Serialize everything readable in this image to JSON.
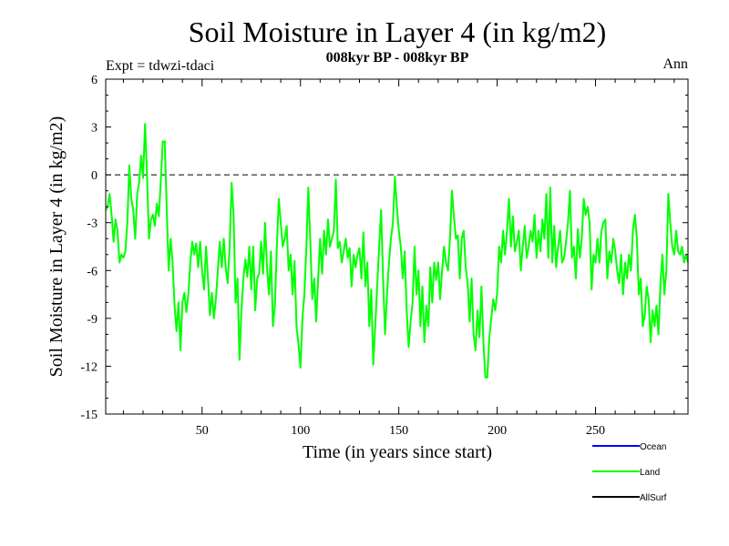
{
  "chart_data": {
    "type": "line",
    "title": "Soil Moisture in Layer 4 (in kg/m2)",
    "subtitle": "008kyr BP - 008kyr BP",
    "left_note": "Expt = tdwzi-tdaci",
    "right_note": "Ann",
    "xlabel": "Time (in years since start)",
    "ylabel": "Soil Moisture in Layer 4 (in kg/m2)",
    "xlim": [
      1,
      297
    ],
    "ylim": [
      -15,
      6
    ],
    "x_ticks": [
      50,
      100,
      150,
      200,
      250
    ],
    "y_ticks": [
      6,
      3,
      0,
      -3,
      -6,
      -9,
      -12,
      -15
    ],
    "zero_line": true,
    "legend": [
      "Ocean",
      "Land",
      "AllSurf"
    ],
    "legend_placement": "bottom-right",
    "series": [
      {
        "name": "Land",
        "color": "#00ff00",
        "keypoints": [
          [
            1,
            -2.2
          ],
          [
            2,
            -2.0
          ],
          [
            3,
            -1.2
          ],
          [
            4,
            -2.5
          ],
          [
            5,
            -4.2
          ],
          [
            6,
            -2.8
          ],
          [
            7,
            -3.5
          ],
          [
            8,
            -5.5
          ],
          [
            9,
            -5.0
          ],
          [
            10,
            -5.2
          ],
          [
            11,
            -4.8
          ],
          [
            12,
            -3.0
          ],
          [
            13,
            0.6
          ],
          [
            14,
            -1.5
          ],
          [
            15,
            -2.2
          ],
          [
            16,
            -4.0
          ],
          [
            17,
            -1.2
          ],
          [
            18,
            -0.5
          ],
          [
            19,
            1.2
          ],
          [
            20,
            -0.2
          ],
          [
            21,
            3.2
          ],
          [
            22,
            0.0
          ],
          [
            23,
            -4.0
          ],
          [
            24,
            -2.8
          ],
          [
            25,
            -2.5
          ],
          [
            26,
            -3.2
          ],
          [
            27,
            -1.8
          ],
          [
            28,
            -2.6
          ],
          [
            29,
            -0.4
          ],
          [
            30,
            2.1
          ],
          [
            31,
            2.1
          ],
          [
            32,
            -2.0
          ],
          [
            33,
            -6.0
          ],
          [
            34,
            -4.0
          ],
          [
            35,
            -5.5
          ],
          [
            36,
            -8.2
          ],
          [
            37,
            -9.8
          ],
          [
            38,
            -8.0
          ],
          [
            39,
            -11.0
          ],
          [
            40,
            -8.0
          ],
          [
            41,
            -7.4
          ],
          [
            42,
            -8.6
          ],
          [
            43,
            -7.5
          ],
          [
            44,
            -5.5
          ],
          [
            45,
            -4.2
          ],
          [
            46,
            -5.0
          ],
          [
            47,
            -4.3
          ],
          [
            48,
            -5.8
          ],
          [
            49,
            -4.2
          ],
          [
            50,
            -6.0
          ],
          [
            51,
            -7.2
          ],
          [
            52,
            -4.5
          ],
          [
            53,
            -6.5
          ],
          [
            54,
            -8.8
          ],
          [
            55,
            -7.4
          ],
          [
            56,
            -9.0
          ],
          [
            57,
            -7.8
          ],
          [
            58,
            -6.0
          ],
          [
            59,
            -4.2
          ],
          [
            60,
            -5.8
          ],
          [
            61,
            -4.0
          ],
          [
            62,
            -5.8
          ],
          [
            63,
            -6.8
          ],
          [
            64,
            -4.5
          ],
          [
            65,
            -0.5
          ],
          [
            66,
            -2.5
          ],
          [
            67,
            -8.0
          ],
          [
            68,
            -6.5
          ],
          [
            69,
            -11.6
          ],
          [
            70,
            -8.5
          ],
          [
            71,
            -6.5
          ],
          [
            72,
            -5.3
          ],
          [
            73,
            -6.4
          ],
          [
            74,
            -4.5
          ],
          [
            75,
            -7.2
          ],
          [
            76,
            -4.5
          ],
          [
            77,
            -8.5
          ],
          [
            78,
            -6.5
          ],
          [
            79,
            -6.2
          ],
          [
            80,
            -4.2
          ],
          [
            81,
            -6.2
          ],
          [
            82,
            -3.0
          ],
          [
            83,
            -5.8
          ],
          [
            84,
            -7.5
          ],
          [
            85,
            -4.8
          ],
          [
            86,
            -9.5
          ],
          [
            87,
            -8.2
          ],
          [
            88,
            -4.5
          ],
          [
            89,
            -1.5
          ],
          [
            90,
            -3.0
          ],
          [
            91,
            -4.5
          ],
          [
            92,
            -4.0
          ],
          [
            93,
            -3.2
          ],
          [
            94,
            -6.0
          ],
          [
            95,
            -5.0
          ],
          [
            96,
            -7.5
          ],
          [
            97,
            -5.4
          ],
          [
            98,
            -9.5
          ],
          [
            99,
            -10.6
          ],
          [
            100,
            -12.1
          ],
          [
            101,
            -9.0
          ],
          [
            102,
            -7.5
          ],
          [
            103,
            -4.5
          ],
          [
            104,
            -0.8
          ],
          [
            105,
            -4.2
          ],
          [
            106,
            -7.8
          ],
          [
            107,
            -6.5
          ],
          [
            108,
            -9.2
          ],
          [
            109,
            -6.5
          ],
          [
            110,
            -4.0
          ],
          [
            111,
            -6.2
          ],
          [
            112,
            -3.5
          ],
          [
            113,
            -5.0
          ],
          [
            114,
            -2.8
          ],
          [
            115,
            -4.5
          ],
          [
            116,
            -4.0
          ],
          [
            117,
            -3.5
          ],
          [
            118,
            -0.3
          ],
          [
            119,
            -4.6
          ],
          [
            120,
            -4.2
          ],
          [
            121,
            -5.5
          ],
          [
            122,
            -4.8
          ],
          [
            123,
            -4.0
          ],
          [
            124,
            -5.2
          ],
          [
            125,
            -4.6
          ],
          [
            126,
            -7.0
          ],
          [
            127,
            -5.0
          ],
          [
            128,
            -5.8
          ],
          [
            129,
            -5.0
          ],
          [
            130,
            -4.6
          ],
          [
            131,
            -6.5
          ],
          [
            132,
            -3.6
          ],
          [
            133,
            -7.0
          ],
          [
            134,
            -5.5
          ],
          [
            135,
            -9.5
          ],
          [
            136,
            -7.2
          ],
          [
            137,
            -11.9
          ],
          [
            138,
            -9.5
          ],
          [
            139,
            -7.0
          ],
          [
            140,
            -4.5
          ],
          [
            141,
            -2.2
          ],
          [
            142,
            -6.5
          ],
          [
            143,
            -10.0
          ],
          [
            144,
            -7.5
          ],
          [
            145,
            -5.5
          ],
          [
            146,
            -4.0
          ],
          [
            147,
            -3.0
          ],
          [
            148,
            -0.1
          ],
          [
            149,
            -2.0
          ],
          [
            150,
            -3.5
          ],
          [
            151,
            -4.5
          ],
          [
            152,
            -6.5
          ],
          [
            153,
            -4.8
          ],
          [
            154,
            -8.5
          ],
          [
            155,
            -10.8
          ],
          [
            156,
            -9.2
          ],
          [
            157,
            -8.0
          ],
          [
            158,
            -4.5
          ],
          [
            159,
            -7.5
          ],
          [
            160,
            -6.0
          ],
          [
            161,
            -9.5
          ],
          [
            162,
            -7.0
          ],
          [
            163,
            -10.5
          ],
          [
            164,
            -8.2
          ],
          [
            165,
            -9.5
          ],
          [
            166,
            -5.8
          ],
          [
            167,
            -8.0
          ],
          [
            168,
            -5.5
          ],
          [
            169,
            -6.6
          ],
          [
            170,
            -5.5
          ],
          [
            171,
            -7.8
          ],
          [
            172,
            -6.0
          ],
          [
            173,
            -4.5
          ],
          [
            174,
            -5.5
          ],
          [
            175,
            -6.0
          ],
          [
            176,
            -4.0
          ],
          [
            177,
            -1.0
          ],
          [
            178,
            -2.6
          ],
          [
            179,
            -4.0
          ],
          [
            180,
            -3.8
          ],
          [
            181,
            -6.5
          ],
          [
            182,
            -4.0
          ],
          [
            183,
            -3.5
          ],
          [
            184,
            -5.8
          ],
          [
            185,
            -6.8
          ],
          [
            186,
            -9.2
          ],
          [
            187,
            -6.5
          ],
          [
            188,
            -10.0
          ],
          [
            189,
            -11.0
          ],
          [
            190,
            -8.5
          ],
          [
            191,
            -10.2
          ],
          [
            192,
            -7.0
          ],
          [
            193,
            -10.5
          ],
          [
            194,
            -12.7
          ],
          [
            195,
            -12.7
          ],
          [
            196,
            -10.2
          ],
          [
            197,
            -9.0
          ],
          [
            198,
            -7.8
          ],
          [
            199,
            -8.5
          ],
          [
            200,
            -7.4
          ],
          [
            201,
            -4.5
          ],
          [
            202,
            -5.5
          ],
          [
            203,
            -3.5
          ],
          [
            204,
            -5.0
          ],
          [
            205,
            -3.5
          ],
          [
            206,
            -1.5
          ],
          [
            207,
            -4.5
          ],
          [
            208,
            -2.6
          ],
          [
            209,
            -4.8
          ],
          [
            210,
            -4.2
          ],
          [
            211,
            -3.5
          ],
          [
            212,
            -6.0
          ],
          [
            213,
            -4.5
          ],
          [
            214,
            -3.2
          ],
          [
            215,
            -5.2
          ],
          [
            216,
            -4.5
          ],
          [
            217,
            -3.5
          ],
          [
            218,
            -4.2
          ],
          [
            219,
            -2.5
          ],
          [
            220,
            -5.2
          ],
          [
            221,
            -3.5
          ],
          [
            222,
            -4.8
          ],
          [
            223,
            -2.8
          ],
          [
            224,
            -4.0
          ],
          [
            225,
            -1.2
          ],
          [
            226,
            -5.2
          ],
          [
            227,
            -0.8
          ],
          [
            228,
            -5.5
          ],
          [
            229,
            -3.2
          ],
          [
            230,
            -5.8
          ],
          [
            231,
            -4.5
          ],
          [
            232,
            -3.5
          ],
          [
            233,
            -5.5
          ],
          [
            234,
            -5.2
          ],
          [
            235,
            -4.2
          ],
          [
            236,
            -3.0
          ],
          [
            237,
            -1.0
          ],
          [
            238,
            -5.2
          ],
          [
            239,
            -4.5
          ],
          [
            240,
            -6.5
          ],
          [
            241,
            -3.4
          ],
          [
            242,
            -5.2
          ],
          [
            243,
            -4.0
          ],
          [
            244,
            -1.5
          ],
          [
            245,
            -2.5
          ],
          [
            246,
            -2.0
          ],
          [
            247,
            -3.0
          ],
          [
            248,
            -7.2
          ],
          [
            249,
            -5.0
          ],
          [
            250,
            -5.5
          ],
          [
            251,
            -4.0
          ],
          [
            252,
            -5.5
          ],
          [
            253,
            -3.5
          ],
          [
            254,
            -3.0
          ],
          [
            255,
            -2.8
          ],
          [
            256,
            -6.5
          ],
          [
            257,
            -4.8
          ],
          [
            258,
            -5.5
          ],
          [
            259,
            -4.0
          ],
          [
            260,
            -4.8
          ],
          [
            261,
            -6.0
          ],
          [
            262,
            -6.8
          ],
          [
            263,
            -5.0
          ],
          [
            264,
            -7.5
          ],
          [
            265,
            -5.5
          ],
          [
            266,
            -6.5
          ],
          [
            267,
            -5.0
          ],
          [
            268,
            -6.0
          ],
          [
            269,
            -3.5
          ],
          [
            270,
            -2.5
          ],
          [
            271,
            -4.0
          ],
          [
            272,
            -7.5
          ],
          [
            273,
            -6.5
          ],
          [
            274,
            -9.5
          ],
          [
            275,
            -8.8
          ],
          [
            276,
            -7.0
          ],
          [
            277,
            -7.8
          ],
          [
            278,
            -10.5
          ],
          [
            279,
            -8.5
          ],
          [
            280,
            -9.5
          ],
          [
            281,
            -8.2
          ],
          [
            282,
            -10.0
          ],
          [
            283,
            -6.8
          ],
          [
            284,
            -5.0
          ],
          [
            285,
            -7.5
          ],
          [
            286,
            -6.0
          ],
          [
            287,
            -1.2
          ],
          [
            288,
            -3.0
          ],
          [
            289,
            -4.5
          ],
          [
            290,
            -5.0
          ],
          [
            291,
            -3.5
          ],
          [
            292,
            -4.8
          ],
          [
            293,
            -5.0
          ],
          [
            294,
            -4.5
          ],
          [
            295,
            -5.5
          ],
          [
            296,
            -5.0
          ],
          [
            297,
            -5.5
          ]
        ]
      }
    ],
    "legend_colors": {
      "Ocean": "#0000ff",
      "Land": "#00ff00",
      "AllSurf": "#000000"
    }
  }
}
